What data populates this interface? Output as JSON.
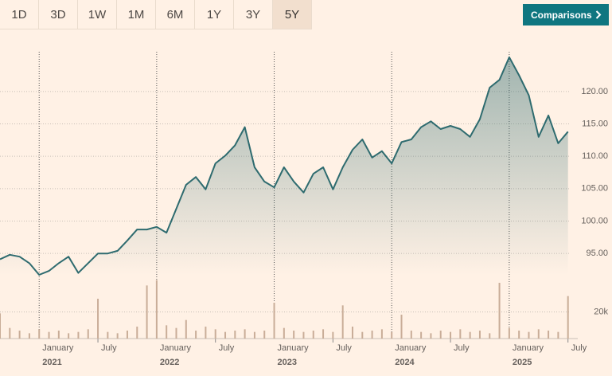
{
  "toolbar": {
    "ranges": [
      "1D",
      "3D",
      "1W",
      "1M",
      "6M",
      "1Y",
      "3Y",
      "5Y"
    ],
    "selected": "5Y",
    "comparisons": "Comparisons"
  },
  "chart_data": {
    "type": "area",
    "x": [
      "2020-09",
      "2020-10",
      "2020-11",
      "2020-12",
      "2021-01",
      "2021-02",
      "2021-03",
      "2021-04",
      "2021-05",
      "2021-06",
      "2021-07",
      "2021-08",
      "2021-09",
      "2021-10",
      "2021-11",
      "2021-12",
      "2022-01",
      "2022-02",
      "2022-03",
      "2022-04",
      "2022-05",
      "2022-06",
      "2022-07",
      "2022-08",
      "2022-09",
      "2022-10",
      "2022-11",
      "2022-12",
      "2023-01",
      "2023-02",
      "2023-03",
      "2023-04",
      "2023-05",
      "2023-06",
      "2023-07",
      "2023-08",
      "2023-09",
      "2023-10",
      "2023-11",
      "2023-12",
      "2024-01",
      "2024-02",
      "2024-03",
      "2024-04",
      "2024-05",
      "2024-06",
      "2024-07",
      "2024-08",
      "2024-09",
      "2024-10",
      "2024-11",
      "2024-12",
      "2025-01",
      "2025-02",
      "2025-03",
      "2025-04",
      "2025-05",
      "2025-06",
      "2025-07"
    ],
    "series": [
      {
        "color": "#2e6b6f",
        "values": [
          94.1,
          94.8,
          94.5,
          93.5,
          91.7,
          92.3,
          93.5,
          94.5,
          92.0,
          93.5,
          95.0,
          95.0,
          95.4,
          97.0,
          98.7,
          98.7,
          99.1,
          98.2,
          101.9,
          105.6,
          106.8,
          104.9,
          108.9,
          110.1,
          111.7,
          114.5,
          108.3,
          106.1,
          105.2,
          108.3,
          106.1,
          104.4,
          107.3,
          108.3,
          104.9,
          108.3,
          111.0,
          112.6,
          109.8,
          110.8,
          108.9,
          112.2,
          112.6,
          114.5,
          115.4,
          114.2,
          114.7,
          114.2,
          113.0,
          115.7,
          120.6,
          121.8,
          125.3,
          122.5,
          119.4,
          113.0,
          116.3,
          112.0,
          113.8
        ]
      },
      {
        "color": "#c9ad98",
        "axis": "y2",
        "values": [
          19000,
          8000,
          6000,
          4000,
          7000,
          5000,
          6000,
          4000,
          5000,
          7000,
          30000,
          5000,
          4000,
          6000,
          9000,
          40000,
          44000,
          10000,
          8000,
          14000,
          6000,
          9000,
          7000,
          5000,
          6000,
          7000,
          5000,
          6000,
          27000,
          8000,
          6000,
          5000,
          6000,
          7000,
          5000,
          25000,
          9000,
          5000,
          6000,
          7000,
          5000,
          18000,
          6000,
          5000,
          4000,
          6000,
          5000,
          7000,
          5000,
          6000,
          4000,
          42000,
          8000,
          6000,
          5000,
          7000,
          6000,
          5000,
          32000
        ]
      }
    ],
    "xlim": [
      "2020-09",
      "2025-08"
    ],
    "xticks": [
      {
        "value": "2021-01",
        "label": "January"
      },
      {
        "value": "2021-07",
        "label": "July"
      },
      {
        "value": "2022-01",
        "label": "January"
      },
      {
        "value": "2022-07",
        "label": "July"
      },
      {
        "value": "2023-01",
        "label": "January"
      },
      {
        "value": "2023-07",
        "label": "July"
      },
      {
        "value": "2024-01",
        "label": "January"
      },
      {
        "value": "2024-07",
        "label": "July"
      },
      {
        "value": "2025-01",
        "label": "January"
      },
      {
        "value": "2025-07",
        "label": "July"
      }
    ],
    "xtick_years": [
      {
        "value": "2021-01",
        "label": "2021"
      },
      {
        "value": "2022-01",
        "label": "2022"
      },
      {
        "value": "2023-01",
        "label": "2023"
      },
      {
        "value": "2024-01",
        "label": "2024"
      },
      {
        "value": "2025-01",
        "label": "2025"
      }
    ],
    "ylim": [
      91.7,
      126.5
    ],
    "yticks": [
      {
        "value": 95,
        "label": "95.00"
      },
      {
        "value": 100,
        "label": "100.00"
      },
      {
        "value": 105,
        "label": "105.00"
      },
      {
        "value": 110,
        "label": "110.00"
      },
      {
        "value": 115,
        "label": "115.00"
      },
      {
        "value": 120,
        "label": "120.00"
      }
    ],
    "y2lim": [
      0,
      48000
    ],
    "y2ticks": [
      {
        "value": 20000,
        "label": "20k"
      }
    ],
    "grid": true
  }
}
